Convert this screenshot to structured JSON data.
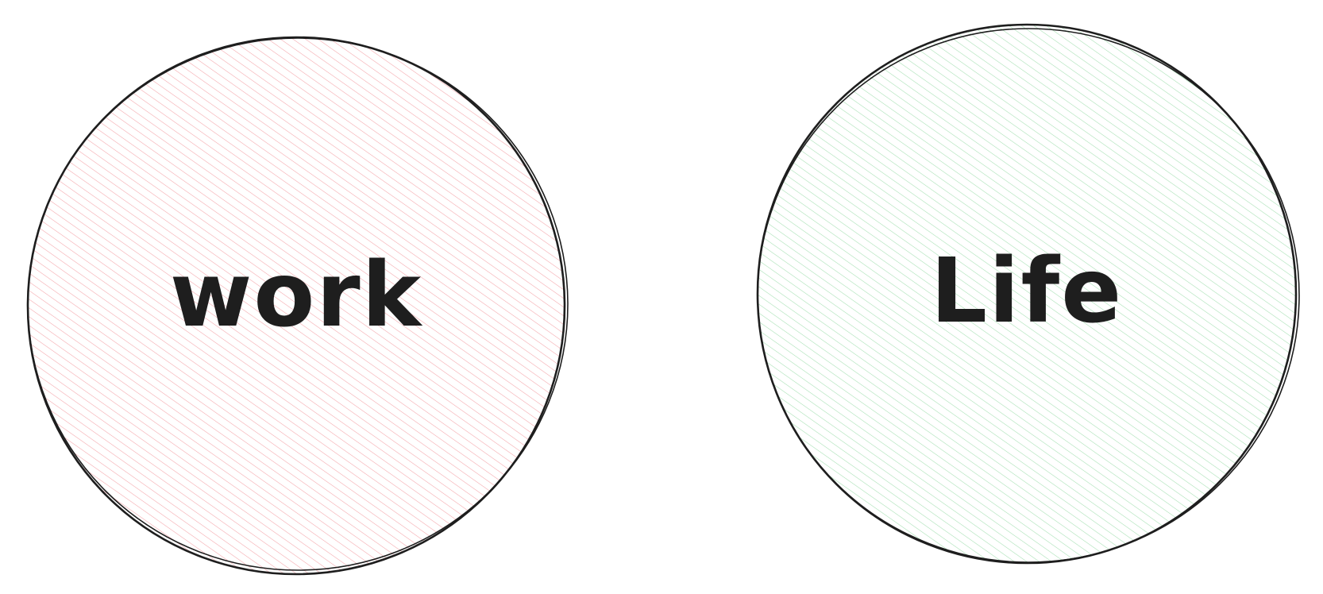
{
  "diagram": {
    "circles": [
      {
        "id": "work",
        "label": "work",
        "fill_color": "#f4a3a8",
        "stroke_color": "#1e1e1e"
      },
      {
        "id": "life",
        "label": "Life",
        "fill_color": "#a3dfb0",
        "stroke_color": "#1e1e1e"
      }
    ]
  }
}
